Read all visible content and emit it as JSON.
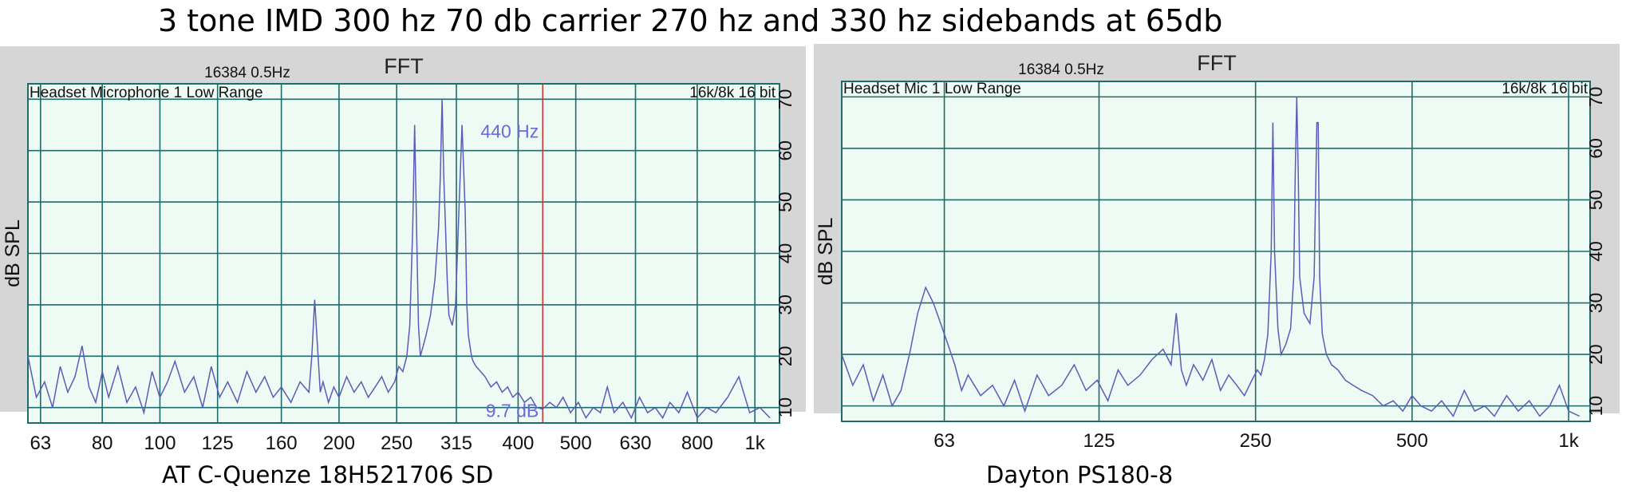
{
  "title": "3 tone IMD 300 hz 70 db carrier 270 hz and 330 hz sidebands at 65db",
  "chart_data": [
    {
      "type": "line",
      "caption": "AT C-Quenze 18H521706 SD",
      "plot_title": "FFT",
      "fft_settings": "16384  0.5Hz",
      "device": "Headset Microphone 1 Low Range",
      "format": "16k/8k 16 bit",
      "ylabel": "dB SPL",
      "xscale": "log",
      "xlim": [
        60,
        1100
      ],
      "ylim": [
        7,
        73
      ],
      "x_ticks": [
        63,
        80,
        100,
        125,
        160,
        200,
        250,
        315,
        400,
        500,
        630,
        800,
        1000
      ],
      "x_tick_labels": [
        "63",
        "80",
        "100",
        "125",
        "160",
        "200",
        "250",
        "315",
        "400",
        "500",
        "630",
        "800",
        "1k"
      ],
      "y_ticks": [
        10,
        20,
        30,
        40,
        50,
        60,
        70
      ],
      "grid": true,
      "line_color": "#5b5bb8",
      "cursor": {
        "x": 440,
        "color": "#cc3333",
        "freq_label": "440 Hz",
        "level_label": "9.7 dB"
      },
      "series": [
        {
          "x": [
            60,
            62,
            64,
            66,
            68,
            70,
            72,
            74,
            76,
            78,
            80,
            82,
            85,
            88,
            91,
            94,
            97,
            100,
            103,
            106,
            110,
            114,
            118,
            122,
            126,
            130,
            135,
            140,
            145,
            150,
            155,
            160,
            166,
            172,
            178,
            180,
            182,
            184,
            186,
            188,
            192,
            196,
            200,
            206,
            212,
            218,
            224,
            230,
            236,
            242,
            248,
            252,
            256,
            260,
            263,
            266,
            268,
            270,
            272,
            274,
            277,
            280,
            285,
            290,
            294,
            296,
            298,
            300,
            302,
            304,
            306,
            310,
            314,
            318,
            322,
            326,
            328,
            330,
            332,
            334,
            336,
            340,
            346,
            352,
            360,
            368,
            376,
            384,
            392,
            400,
            410,
            420,
            430,
            440,
            452,
            464,
            476,
            490,
            505,
            520,
            535,
            550,
            565,
            580,
            600,
            620,
            640,
            660,
            680,
            700,
            720,
            745,
            770,
            800,
            830,
            860,
            900,
            940,
            980,
            1020,
            1060
          ],
          "y": [
            20,
            12,
            15,
            10,
            18,
            13,
            16,
            22,
            14,
            11,
            17,
            12,
            18,
            11,
            14,
            9,
            17,
            12,
            15,
            19,
            13,
            16,
            10,
            18,
            12,
            15,
            11,
            17,
            13,
            16,
            12,
            14,
            11,
            15,
            13,
            20,
            31,
            22,
            13,
            15,
            11,
            14,
            12,
            16,
            13,
            15,
            12,
            14,
            16,
            13,
            15,
            18,
            17,
            20,
            26,
            45,
            65,
            45,
            26,
            20,
            22,
            24,
            28,
            35,
            45,
            55,
            70,
            55,
            45,
            35,
            28,
            26,
            30,
            48,
            65,
            48,
            30,
            24,
            22,
            20,
            19,
            18,
            17,
            16,
            14,
            15,
            13,
            14,
            12,
            13,
            11,
            12,
            10,
            9.7,
            11,
            10,
            12,
            9,
            11,
            8,
            10,
            9,
            14,
            9,
            11,
            8,
            12,
            9,
            10,
            8,
            11,
            9,
            13,
            8,
            10,
            9,
            12,
            16,
            9,
            10,
            8
          ]
        }
      ]
    },
    {
      "type": "line",
      "caption": "Dayton PS180-8",
      "plot_title": "FFT",
      "fft_settings": "16384  0.5Hz",
      "device": "Headset Mic 1 Low Range",
      "format": "16k/8k 16 bit",
      "ylabel": "dB SPL",
      "xscale": "log",
      "xlim": [
        40,
        1100
      ],
      "ylim": [
        7,
        73
      ],
      "x_ticks": [
        63,
        125,
        250,
        500,
        1000
      ],
      "x_tick_labels": [
        "63",
        "125",
        "250",
        "500",
        "1k"
      ],
      "y_ticks": [
        10,
        20,
        30,
        40,
        50,
        60,
        70
      ],
      "grid": true,
      "line_color": "#5b5bb8",
      "series": [
        {
          "x": [
            40,
            42,
            44,
            46,
            48,
            50,
            52,
            54,
            56,
            58,
            60,
            62,
            64,
            66,
            68,
            70,
            74,
            78,
            82,
            86,
            90,
            95,
            100,
            106,
            112,
            118,
            124,
            130,
            136,
            142,
            150,
            158,
            166,
            172,
            176,
            180,
            184,
            190,
            198,
            206,
            214,
            222,
            230,
            238,
            246,
            252,
            256,
            260,
            264,
            268,
            270,
            272,
            276,
            280,
            286,
            292,
            296,
            298,
            300,
            302,
            304,
            310,
            318,
            324,
            328,
            330,
            332,
            336,
            342,
            350,
            360,
            372,
            385,
            400,
            420,
            440,
            460,
            480,
            500,
            520,
            545,
            570,
            600,
            630,
            660,
            690,
            720,
            760,
            800,
            840,
            880,
            920,
            960,
            1000,
            1050
          ],
          "y": [
            20,
            14,
            18,
            11,
            16,
            10,
            13,
            20,
            28,
            33,
            30,
            26,
            22,
            18,
            13,
            16,
            12,
            14,
            10,
            15,
            9,
            16,
            12,
            14,
            18,
            13,
            15,
            11,
            17,
            14,
            16,
            19,
            21,
            18,
            28,
            17,
            14,
            18,
            15,
            19,
            13,
            16,
            14,
            12,
            15,
            17,
            16,
            19,
            24,
            40,
            65,
            40,
            25,
            20,
            22,
            25,
            35,
            55,
            70,
            55,
            35,
            28,
            26,
            35,
            65,
            65,
            35,
            24,
            20,
            18,
            17,
            15,
            14,
            13,
            12,
            10,
            11,
            9,
            12,
            10,
            9,
            11,
            8,
            13,
            9,
            10,
            8,
            12,
            9,
            11,
            8,
            10,
            14,
            9,
            8
          ]
        }
      ]
    }
  ]
}
